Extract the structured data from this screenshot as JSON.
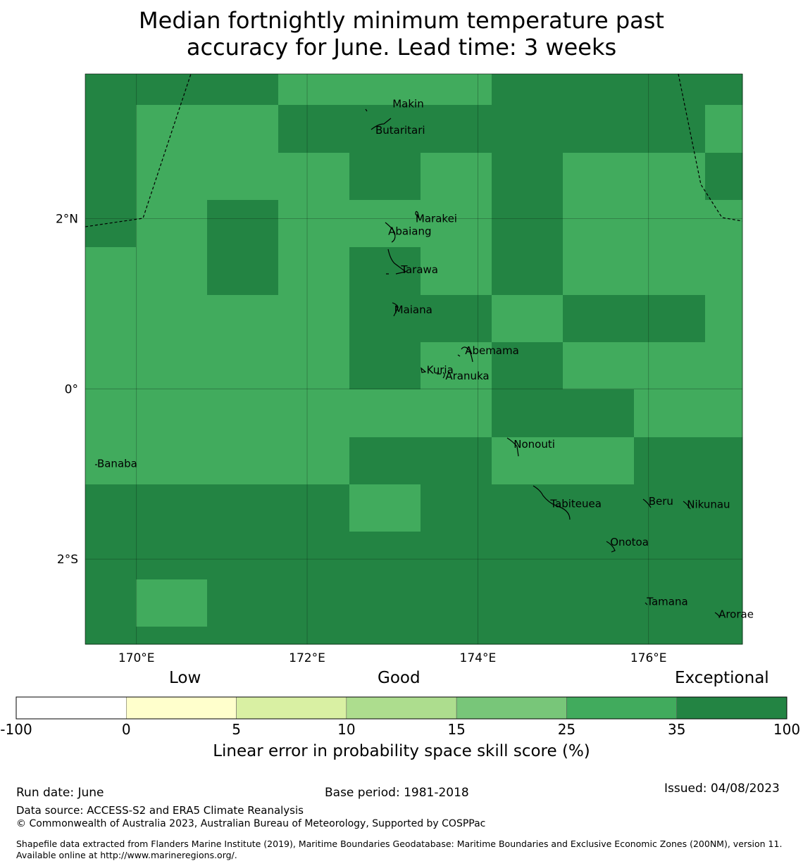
{
  "title_line1": "Median fortnightly minimum temperature past",
  "title_line2": "accuracy for June. Lead time: 3 weeks",
  "map": {
    "lon_range": [
      169.4,
      177.1
    ],
    "lat_range": [
      -3.0,
      3.7
    ],
    "x_ticks": [
      {
        "value": 170,
        "label": "170°E"
      },
      {
        "value": 172,
        "label": "172°E"
      },
      {
        "value": 174,
        "label": "174°E"
      },
      {
        "value": 176,
        "label": "176°E"
      }
    ],
    "y_ticks": [
      {
        "value": 2,
        "label": "2°N"
      },
      {
        "value": 0,
        "label": "0°"
      },
      {
        "value": -2,
        "label": "2°S"
      }
    ],
    "colors": {
      "good_35": "#41ab5d",
      "exceptional_100": "#238443"
    },
    "places": [
      {
        "name": "Makin",
        "lon": 173.0,
        "lat": 3.35
      },
      {
        "name": "Butaritari",
        "lon": 172.8,
        "lat": 3.04
      },
      {
        "name": "Marakei",
        "lon": 173.27,
        "lat": 2.0
      },
      {
        "name": "Abaiang",
        "lon": 172.95,
        "lat": 1.85
      },
      {
        "name": "Tarawa",
        "lon": 173.1,
        "lat": 1.4
      },
      {
        "name": "Maiana",
        "lon": 173.02,
        "lat": 0.93
      },
      {
        "name": "Abemama",
        "lon": 173.85,
        "lat": 0.45
      },
      {
        "name": "Kuria",
        "lon": 173.4,
        "lat": 0.22
      },
      {
        "name": "Aranuka",
        "lon": 173.62,
        "lat": 0.15
      },
      {
        "name": "Nonouti",
        "lon": 174.42,
        "lat": -0.65
      },
      {
        "name": "Banaba",
        "lon": 169.54,
        "lat": -0.88
      },
      {
        "name": "Tabiteuea",
        "lon": 174.85,
        "lat": -1.35
      },
      {
        "name": "Beru",
        "lon": 176.0,
        "lat": -1.32
      },
      {
        "name": "Nikunau",
        "lon": 176.45,
        "lat": -1.36
      },
      {
        "name": "Onotoa",
        "lon": 175.55,
        "lat": -1.8
      },
      {
        "name": "Tamana",
        "lon": 175.98,
        "lat": -2.5
      },
      {
        "name": "Arorae",
        "lon": 176.82,
        "lat": -2.65
      }
    ]
  },
  "colorbar": {
    "category_labels": [
      "Low",
      "Good",
      "Exceptional"
    ],
    "bins": [
      {
        "from": "-100",
        "to": "0",
        "color": "#ffffff"
      },
      {
        "from": "0",
        "to": "5",
        "color": "#ffffcc"
      },
      {
        "from": "5",
        "to": "10",
        "color": "#d9f0a3"
      },
      {
        "from": "10",
        "to": "15",
        "color": "#addd8e"
      },
      {
        "from": "15",
        "to": "25",
        "color": "#78c679"
      },
      {
        "from": "25",
        "to": "35",
        "color": "#41ab5d"
      },
      {
        "from": "35",
        "to": "100",
        "color": "#238443"
      }
    ],
    "tick_labels": [
      "-100",
      "0",
      "5",
      "10",
      "15",
      "25",
      "35",
      "100"
    ],
    "title": "Linear error in probability space skill score (%)"
  },
  "footer": {
    "run_date": "Run date: June",
    "base_period": "Base period: 1981-2018",
    "issued": "Issued: 04/08/2023",
    "data_source": "Data source: ACCESS-S2 and ERA5 Climate Reanalysis",
    "copyright": "© Commonwealth of Australia 2023, Australian Bureau of Meteorology, Supported by COSPPac",
    "shapefile": "Shapefile data extracted from Flanders Marine Institute (2019), Maritime Boundaries Geodatabase: Maritime Boundaries and Exclusive Economic Zones (200NM), version 11. Available online at http://www.marineregions.org/."
  }
}
